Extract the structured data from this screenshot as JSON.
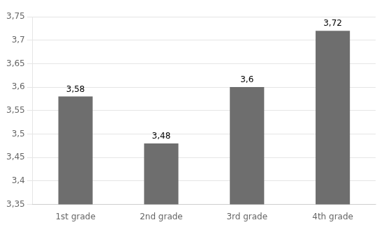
{
  "chart_data": {
    "type": "bar",
    "categories": [
      "1st grade",
      "2nd grade",
      "3rd grade",
      "4th grade"
    ],
    "values": [
      3.58,
      3.48,
      3.6,
      3.72
    ],
    "value_labels": [
      "3,58",
      "3,48",
      "3,6",
      "3,72"
    ],
    "data_labels": true,
    "color": "#6e6e6e",
    "ylim": [
      3.35,
      3.75
    ],
    "yticks": [
      {
        "value": 3.35,
        "label": "3,35"
      },
      {
        "value": 3.4,
        "label": "3,4"
      },
      {
        "value": 3.45,
        "label": "3,45"
      },
      {
        "value": 3.5,
        "label": "3,5"
      },
      {
        "value": 3.55,
        "label": "3,55"
      },
      {
        "value": 3.6,
        "label": "3,6"
      },
      {
        "value": 3.65,
        "label": "3,65"
      },
      {
        "value": 3.7,
        "label": "3,7"
      },
      {
        "value": 3.75,
        "label": "3,75"
      }
    ],
    "grid": true
  }
}
